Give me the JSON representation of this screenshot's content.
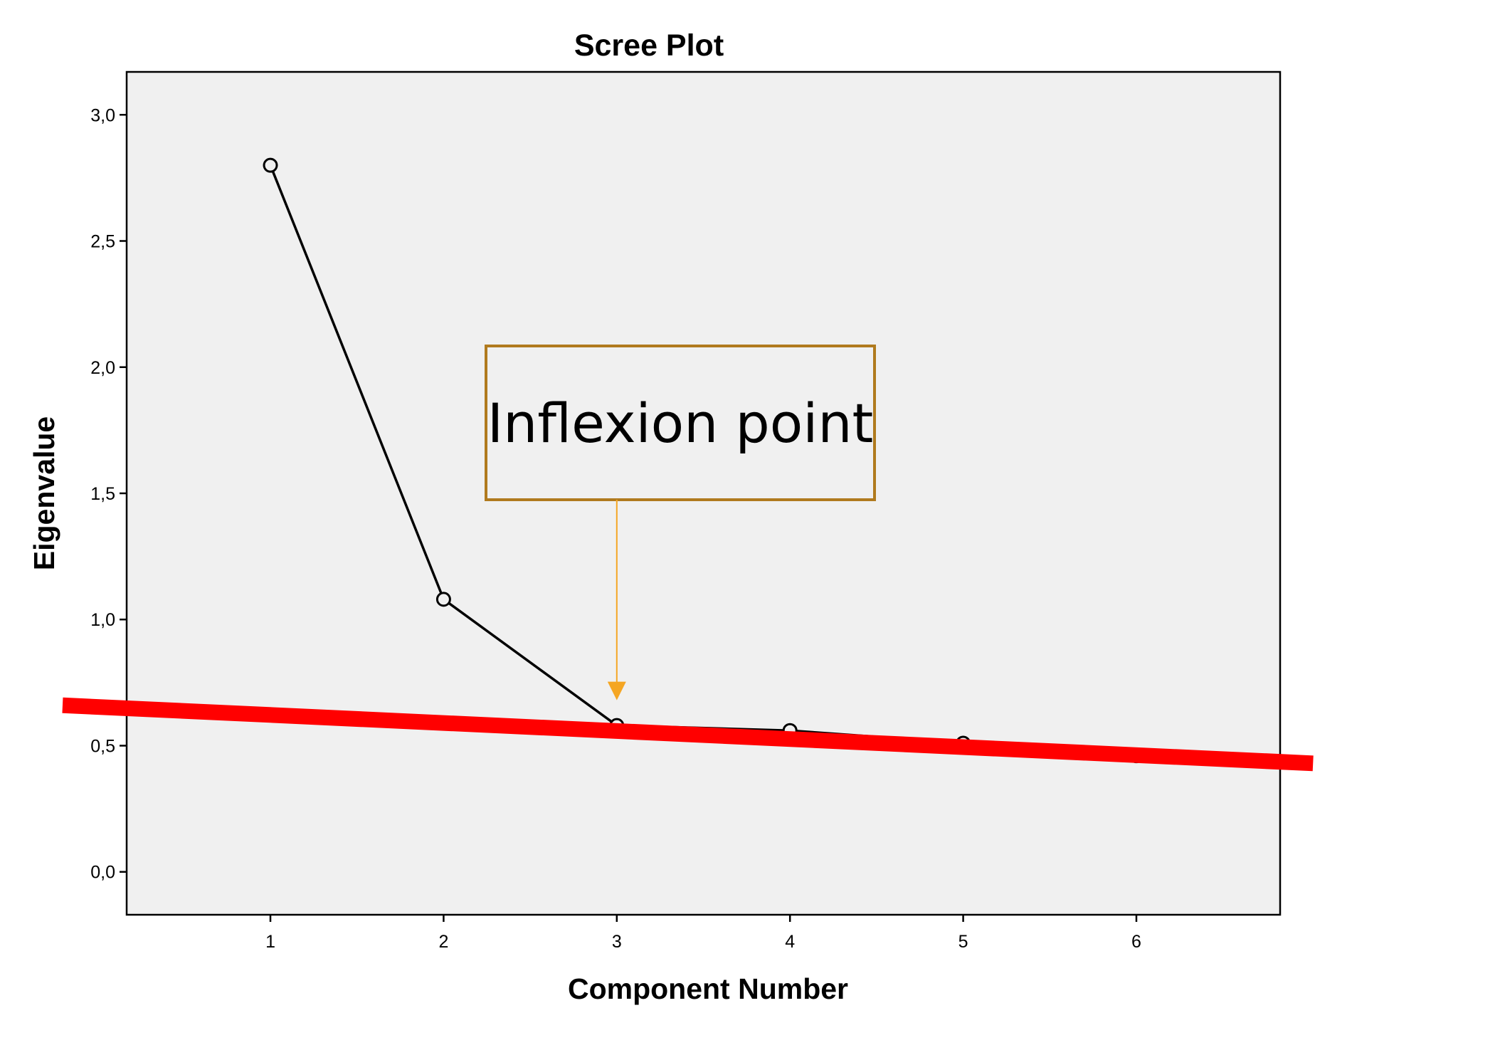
{
  "chart_data": {
    "type": "line",
    "title": "Scree Plot",
    "xlabel": "Component Number",
    "ylabel": "Eigenvalue",
    "x_ticks": [
      "1",
      "2",
      "3",
      "4",
      "5",
      "6"
    ],
    "y_ticks": [
      "0,0",
      "0,5",
      "1,0",
      "1,5",
      "2,0",
      "2,5",
      "3,0"
    ],
    "xlim": [
      0.17,
      6.83
    ],
    "ylim": [
      -0.17,
      3.17
    ],
    "grid": false,
    "series": [
      {
        "x": [
          1,
          2,
          3,
          4,
          5,
          6
        ],
        "y": [
          2.8,
          1.08,
          0.58,
          0.56,
          0.51,
          0.46
        ],
        "marker": "open-circle",
        "color": "#000000"
      }
    ],
    "reference_line": {
      "color": "#ff0000",
      "from": {
        "x": -0.2,
        "y": 0.66
      },
      "to": {
        "x": 7.02,
        "y": 0.43
      }
    },
    "annotation": {
      "text": "Inflexion point",
      "border_color": "#b07a1e",
      "arrow_color": "#f5a623",
      "arrow_target": {
        "x": 3,
        "y": 0.68
      }
    },
    "plot_background": "#f0f0f0"
  }
}
